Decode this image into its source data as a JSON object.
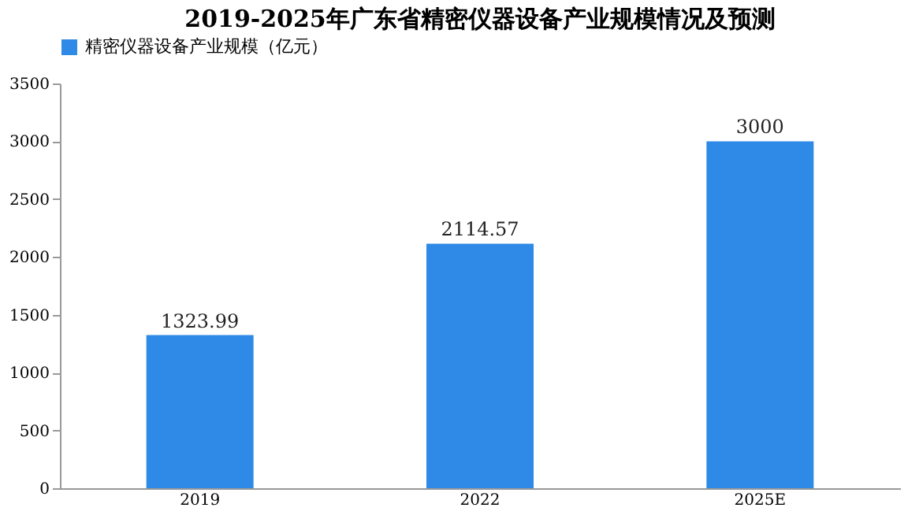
{
  "chart_data": {
    "type": "bar",
    "title": "2019-2025年广东省精密仪器设备产业规模情况及预测",
    "categories": [
      "2019",
      "2022",
      "2025E"
    ],
    "series": [
      {
        "name": "精密仪器设备产业规模（亿元）",
        "color": "#2e8ae6",
        "values": [
          1323.99,
          2114.57,
          3000
        ]
      }
    ],
    "value_labels": [
      "1323.99",
      "2114.57",
      "3000"
    ],
    "ylim": [
      0,
      3500
    ],
    "yticks": [
      0,
      500,
      1000,
      1500,
      2000,
      2500,
      3000,
      3500
    ],
    "grid": false,
    "legend": "top"
  }
}
